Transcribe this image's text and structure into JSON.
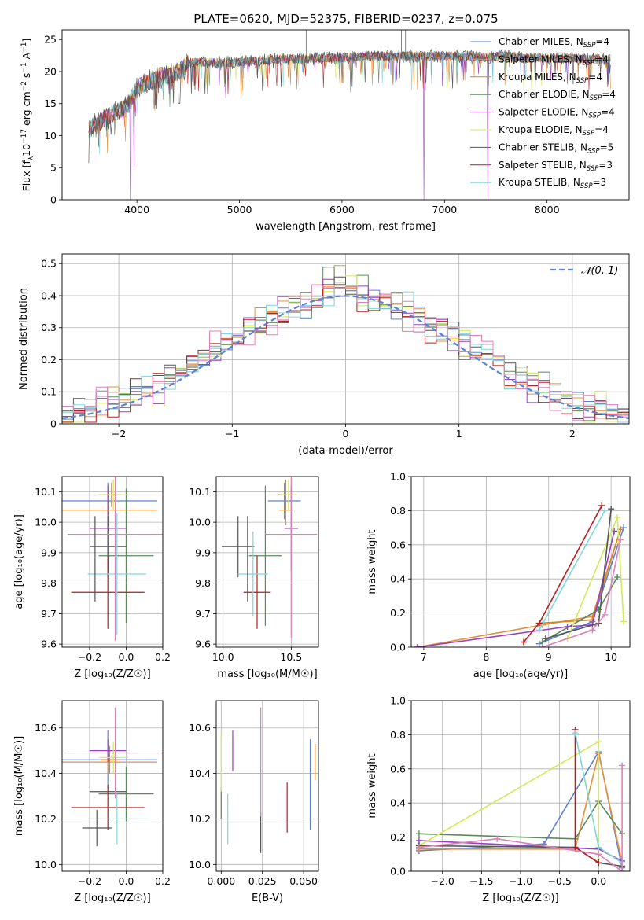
{
  "title": "PLATE=0620, MJD=52375, FIBERID=0237, z=0.075",
  "colors": {
    "Chabrier MILES": "#5b82d6",
    "Salpeter MILES": "#e7903a",
    "Kroupa MILES": "#d9822b",
    "Chabrier ELODIE": "#5b8a5b",
    "Salpeter ELODIE": "#9b3fbf",
    "Kroupa ELODIE": "#d4e85a",
    "Chabrier STELIB": "#555555",
    "Salpeter STELIB": "#b81c1c",
    "Kroupa STELIB": "#7ed6dc",
    "extra": "#e080b8"
  },
  "chart_data": [
    {
      "id": "spectrum",
      "type": "line",
      "xlabel": "wavelength [Angstrom, rest frame]",
      "ylabel": "Flux [f$_\\lambda$10$^{-17}$ erg cm$^{-2}$ s$^{-1}$ A$^{-1}$]",
      "ylabel_parts": [
        "Flux [f",
        "λ",
        "10",
        "−17",
        " erg cm",
        "−2",
        " s",
        "−1",
        " A",
        "−1",
        "]"
      ],
      "xlim": [
        3270,
        8800
      ],
      "ylim": [
        0,
        26.5
      ],
      "xticks": [
        4000,
        5000,
        6000,
        7000,
        8000
      ],
      "yticks": [
        0,
        5,
        10,
        15,
        20,
        25
      ],
      "legend_position": "top-right",
      "legend": [
        {
          "name": "Chabrier MILES",
          "nssp": "4",
          "color": "#5b82d6"
        },
        {
          "name": "Salpeter MILES",
          "nssp": "4",
          "color": "#e7903a"
        },
        {
          "name": "Kroupa MILES",
          "nssp": "4",
          "color": "#d9822b"
        },
        {
          "name": "Chabrier ELODIE",
          "nssp": "4",
          "color": "#5b8a5b"
        },
        {
          "name": "Salpeter ELODIE",
          "nssp": "4",
          "color": "#9b3fbf"
        },
        {
          "name": "Kroupa ELODIE",
          "nssp": "4",
          "color": "#d4e85a"
        },
        {
          "name": "Chabrier STELIB",
          "nssp": "5",
          "color": "#555555"
        },
        {
          "name": "Salpeter STELIB",
          "nssp": "3",
          "color": "#b81c1c"
        },
        {
          "name": "Kroupa STELIB",
          "nssp": "3",
          "color": "#7ed6dc"
        }
      ],
      "continuum": [
        [
          3530,
          11
        ],
        [
          3600,
          12
        ],
        [
          3700,
          13
        ],
        [
          3800,
          14
        ],
        [
          3900,
          14.5
        ],
        [
          4000,
          17.5
        ],
        [
          4100,
          18.5
        ],
        [
          4200,
          19.5
        ],
        [
          4300,
          19.5
        ],
        [
          4400,
          20
        ],
        [
          4500,
          21.5
        ],
        [
          4600,
          21.5
        ],
        [
          4700,
          21.5
        ],
        [
          4800,
          21.5
        ],
        [
          5000,
          21.5
        ],
        [
          5200,
          21.8
        ],
        [
          5400,
          22
        ],
        [
          5600,
          22
        ],
        [
          5800,
          22.2
        ],
        [
          6000,
          22.2
        ],
        [
          6200,
          22.5
        ],
        [
          6400,
          22.5
        ],
        [
          6600,
          22.5
        ],
        [
          6800,
          22.5
        ],
        [
          7000,
          22.5
        ],
        [
          7200,
          22.5
        ],
        [
          7400,
          22.3
        ],
        [
          7600,
          22.5
        ],
        [
          7800,
          22.2
        ],
        [
          8000,
          22.2
        ],
        [
          8200,
          22.2
        ],
        [
          8400,
          22
        ],
        [
          8600,
          22
        ]
      ],
      "dips": [
        [
          3934,
          0
        ],
        [
          3969,
          5
        ],
        [
          4861,
          18
        ],
        [
          5175,
          19
        ],
        [
          6563,
          19
        ],
        [
          6800,
          0
        ],
        [
          7420,
          0
        ]
      ]
    },
    {
      "id": "residuals",
      "type": "line",
      "xlabel": "(data-model)/error",
      "ylabel": "Normed distribution",
      "xlim": [
        -2.5,
        2.5
      ],
      "ylim": [
        0,
        0.53
      ],
      "xticks": [
        -2,
        -1,
        0,
        1,
        2
      ],
      "yticks": [
        0.0,
        0.1,
        0.2,
        0.3,
        0.4,
        0.5
      ],
      "grid": true,
      "legend_position": "top-right",
      "legend": [
        {
          "name": "𝒩(0, 1)",
          "color": "#5b82d6",
          "style": "dashed"
        }
      ],
      "bin_width": 0.1
    },
    {
      "id": "age-vs-Z",
      "type": "scatter",
      "xlabel": "Z [log₁₀(Z/Z☉)]",
      "ylabel": "age  [log₁₀(age/yr)]",
      "xlim": [
        -0.35,
        0.2
      ],
      "ylim": [
        9.59,
        10.15
      ],
      "xticks": [
        "-0.2",
        "0.0",
        "0.2"
      ],
      "yticks": [
        "9.6",
        "9.7",
        "9.8",
        "9.9",
        "10.0",
        "10.1"
      ],
      "grid": true,
      "points": [
        {
          "color": "#5b82d6",
          "x": -0.1,
          "xerr": 0.27,
          "y": 10.07,
          "yerr": 0.06
        },
        {
          "color": "#e7903a",
          "x": -0.1,
          "xerr": 0.27,
          "y": 10.04,
          "yerr": 0.07
        },
        {
          "color": "#d9822b",
          "x": -0.08,
          "xerr": 0.05,
          "y": 10.09,
          "yerr": 0.04
        },
        {
          "color": "#5b8a5b",
          "x": 0.0,
          "xerr": 0.15,
          "y": 9.89,
          "yerr": 0.22
        },
        {
          "color": "#9b3fbf",
          "x": -0.1,
          "xerr": 0.1,
          "y": 9.98,
          "yerr": 0.14
        },
        {
          "color": "#d4e85a",
          "x": -0.07,
          "xerr": 0.08,
          "y": 10.09,
          "yerr": 0.05
        },
        {
          "color": "#555555",
          "x": -0.1,
          "xerr": 0.1,
          "y": 9.92,
          "yerr": 0.1
        },
        {
          "color": "#b81c1c",
          "x": -0.1,
          "xerr": 0.2,
          "y": 9.77,
          "yerr": 0.12
        },
        {
          "color": "#7ed6dc",
          "x": -0.05,
          "xerr": 0.16,
          "y": 9.83,
          "yerr": 0.2
        },
        {
          "color": "#e080b8",
          "x": -0.06,
          "xerr": 0.26,
          "y": 9.96,
          "yerr": 0.35
        },
        {
          "color": "#555555",
          "x": -0.17,
          "xerr": 0.0,
          "y": 9.88,
          "yerr": 0.14
        }
      ]
    },
    {
      "id": "age-vs-mass",
      "type": "scatter",
      "xlabel": "mass [log₁₀(M/M☉)]",
      "xlim": [
        9.95,
        10.7
      ],
      "ylim": [
        9.59,
        10.15
      ],
      "xticks": [
        "10.0",
        "10.5"
      ],
      "yticks": [
        "9.6",
        "9.7",
        "9.8",
        "9.9",
        "10.0",
        "10.1"
      ],
      "grid": true,
      "points": [
        {
          "color": "#5b82d6",
          "x": 10.45,
          "xerr": 0.12,
          "y": 10.07,
          "yerr": 0.06
        },
        {
          "color": "#e7903a",
          "x": 10.46,
          "xerr": 0.05,
          "y": 10.04,
          "yerr": 0.05
        },
        {
          "color": "#d9822b",
          "x": 10.46,
          "xerr": 0.06,
          "y": 10.09,
          "yerr": 0.05
        },
        {
          "color": "#5b8a5b",
          "x": 10.31,
          "xerr": 0.12,
          "y": 9.89,
          "yerr": 0.23
        },
        {
          "color": "#9b3fbf",
          "x": 10.5,
          "xerr": 0.05,
          "y": 9.98,
          "yerr": 0.14
        },
        {
          "color": "#d4e85a",
          "x": 10.48,
          "xerr": 0.06,
          "y": 10.09,
          "yerr": 0.05
        },
        {
          "color": "#555555",
          "x": 10.11,
          "xerr": 0.12,
          "y": 9.92,
          "yerr": 0.1
        },
        {
          "color": "#b81c1c",
          "x": 10.25,
          "xerr": 0.1,
          "y": 9.77,
          "yerr": 0.12
        },
        {
          "color": "#7ed6dc",
          "x": 10.22,
          "xerr": 0.11,
          "y": 9.83,
          "yerr": 0.14
        },
        {
          "color": "#e080b8",
          "x": 10.5,
          "xerr": 0.19,
          "y": 9.96,
          "yerr": 0.34
        },
        {
          "color": "#555555",
          "x": 10.18,
          "xerr": 0.0,
          "y": 9.88,
          "yerr": 0.14
        }
      ]
    },
    {
      "id": "massweight-vs-age",
      "type": "line",
      "xlabel": "age  [log₁₀(age/yr)]",
      "ylabel": "mass weight",
      "xlim": [
        6.8,
        10.3
      ],
      "ylim": [
        0,
        1.0
      ],
      "xticks": [
        "7",
        "8",
        "9",
        "10"
      ],
      "yticks": [
        "0.0",
        "0.2",
        "0.4",
        "0.6",
        "0.8",
        "1.0"
      ],
      "grid": true,
      "series": [
        {
          "color": "#5b82d6",
          "x": [
            8.85,
            9.7,
            10.2
          ],
          "y": [
            0.02,
            0.15,
            0.7
          ]
        },
        {
          "color": "#e7903a",
          "x": [
            6.9,
            8.9,
            9.7,
            10.15
          ],
          "y": [
            0.0,
            0.13,
            0.18,
            0.69
          ]
        },
        {
          "color": "#d9822b",
          "x": [
            8.85,
            9.7,
            10.15
          ],
          "y": [
            0.14,
            0.16,
            0.69
          ]
        },
        {
          "color": "#5b8a5b",
          "x": [
            8.9,
            9.8,
            10.1
          ],
          "y": [
            0.03,
            0.22,
            0.41
          ]
        },
        {
          "color": "#9b3fbf",
          "x": [
            6.9,
            9.3,
            9.7,
            10.05
          ],
          "y": [
            0.0,
            0.12,
            0.13,
            0.68
          ]
        },
        {
          "color": "#d4e85a",
          "x": [
            9.3,
            10.1,
            10.2
          ],
          "y": [
            0.05,
            0.76,
            0.15
          ]
        },
        {
          "color": "#555555",
          "x": [
            8.95,
            9.8,
            10.0
          ],
          "y": [
            0.05,
            0.14,
            0.81
          ]
        },
        {
          "color": "#b81c1c",
          "x": [
            8.6,
            8.85,
            9.85
          ],
          "y": [
            0.03,
            0.14,
            0.83
          ]
        },
        {
          "color": "#7ed6dc",
          "x": [
            8.85,
            9.9
          ],
          "y": [
            0.1,
            0.8
          ]
        },
        {
          "color": "#e080b8",
          "x": [
            8.9,
            9.7,
            9.9,
            10.15
          ],
          "y": [
            0.0,
            0.1,
            0.19,
            0.63
          ]
        }
      ]
    },
    {
      "id": "mass-vs-Z",
      "type": "scatter",
      "xlabel": "Z [log₁₀(Z/Z☉)]",
      "ylabel": "mass [log₁₀(M/M☉)]",
      "xlim": [
        -0.35,
        0.2
      ],
      "ylim": [
        9.97,
        10.72
      ],
      "xticks": [
        "-0.2",
        "0.0",
        "0.2"
      ],
      "yticks": [
        "10.0",
        "10.2",
        "10.4",
        "10.6"
      ],
      "grid": true,
      "points": [
        {
          "color": "#5b82d6",
          "x": -0.1,
          "xerr": 0.27,
          "y": 10.46,
          "yerr": 0.13
        },
        {
          "color": "#e7903a",
          "x": -0.1,
          "xerr": 0.27,
          "y": 10.45,
          "yerr": 0.05
        },
        {
          "color": "#d9822b",
          "x": -0.09,
          "xerr": 0.05,
          "y": 10.46,
          "yerr": 0.06
        },
        {
          "color": "#5b8a5b",
          "x": 0.0,
          "xerr": 0.15,
          "y": 10.31,
          "yerr": 0.12
        },
        {
          "color": "#9b3fbf",
          "x": -0.1,
          "xerr": 0.1,
          "y": 10.5,
          "yerr": 0.05
        },
        {
          "color": "#d4e85a",
          "x": -0.07,
          "xerr": 0.08,
          "y": 10.47,
          "yerr": 0.07
        },
        {
          "color": "#555555",
          "x": -0.1,
          "xerr": 0.1,
          "y": 10.32,
          "yerr": 0.0
        },
        {
          "color": "#b81c1c",
          "x": -0.1,
          "xerr": 0.2,
          "y": 10.25,
          "yerr": 0.1
        },
        {
          "color": "#7ed6dc",
          "x": -0.05,
          "xerr": 0.16,
          "y": 10.2,
          "yerr": 0.11
        },
        {
          "color": "#e080b8",
          "x": -0.06,
          "xerr": 0.26,
          "y": 10.49,
          "yerr": 0.2
        },
        {
          "color": "#555555",
          "x": -0.16,
          "xerr": 0.08,
          "y": 10.16,
          "yerr": 0.08
        }
      ]
    },
    {
      "id": "mass-vs-EBV",
      "type": "scatter",
      "xlabel": "E(B-V)",
      "xlim": [
        -0.003,
        0.059
      ],
      "ylim": [
        9.97,
        10.72
      ],
      "xticks": [
        "0.000",
        "0.025",
        "0.050"
      ],
      "yticks": [
        "10.0",
        "10.2",
        "10.4",
        "10.6"
      ],
      "grid": true,
      "points": [
        {
          "color": "#5b82d6",
          "x": 0.054,
          "xerr": 0,
          "y": 10.35,
          "yerr": 0.2
        },
        {
          "color": "#e7903a",
          "x": 0.057,
          "xerr": 0,
          "y": 10.45,
          "yerr": 0.08
        },
        {
          "color": "#5b8a5b",
          "x": 0.0,
          "xerr": 0,
          "y": 10.27,
          "yerr": 0.07
        },
        {
          "color": "#9b3fbf",
          "x": 0.007,
          "xerr": 0,
          "y": 10.5,
          "yerr": 0.09
        },
        {
          "color": "#d4e85a",
          "x": 0.0,
          "xerr": 0,
          "y": 10.45,
          "yerr": 0.13
        },
        {
          "color": "#555555",
          "x": 0.024,
          "xerr": 0,
          "y": 10.14,
          "yerr": 0.09
        },
        {
          "color": "#b81c1c",
          "x": 0.04,
          "xerr": 0,
          "y": 10.25,
          "yerr": 0.11
        },
        {
          "color": "#7ed6dc",
          "x": 0.004,
          "xerr": 0,
          "y": 10.2,
          "yerr": 0.11
        },
        {
          "color": "#e080b8",
          "x": 0.024,
          "xerr": 0,
          "y": 10.45,
          "yerr": 0.24
        }
      ]
    },
    {
      "id": "massweight-vs-Z",
      "type": "line",
      "xlabel": "Z [log₁₀(Z/Z☉)]",
      "ylabel": "mass weight",
      "xlim": [
        -2.4,
        0.4
      ],
      "ylim": [
        0,
        1.0
      ],
      "xticks": [
        "-2.0",
        "-1.5",
        "-1.0",
        "-0.5",
        "0.0",
        "0.5"
      ],
      "yticks": [
        "0.0",
        "0.2",
        "0.4",
        "0.6",
        "0.8",
        "1.0"
      ],
      "grid": true,
      "series": [
        {
          "color": "#5b82d6",
          "x": [
            -2.3,
            -0.7,
            0.0,
            0.3
          ],
          "y": [
            0.12,
            0.16,
            0.7,
            0.02
          ]
        },
        {
          "color": "#e7903a",
          "x": [
            -2.3,
            -0.3,
            0.0,
            0.3
          ],
          "y": [
            0.13,
            0.13,
            0.69,
            0.05
          ]
        },
        {
          "color": "#5b8a5b",
          "x": [
            -2.3,
            -0.3,
            0.0,
            0.3
          ],
          "y": [
            0.22,
            0.19,
            0.41,
            0.22
          ]
        },
        {
          "color": "#9b3fbf",
          "x": [
            -2.3,
            0.0,
            0.3
          ],
          "y": [
            0.18,
            0.13,
            0.06
          ]
        },
        {
          "color": "#d4e85a",
          "x": [
            -2.3,
            0.0,
            0.0
          ],
          "y": [
            0.15,
            0.76,
            0.05
          ]
        },
        {
          "color": "#555555",
          "x": [
            -2.3,
            -0.3,
            0.0,
            0.3
          ],
          "y": [
            0.15,
            0.14,
            0.05,
            0.03
          ]
        },
        {
          "color": "#b81c1c",
          "x": [
            -0.3,
            -0.3,
            0.0
          ],
          "y": [
            0.83,
            0.14,
            0.05
          ]
        },
        {
          "color": "#7ed6dc",
          "x": [
            -0.3,
            0.0,
            0.3
          ],
          "y": [
            0.81,
            0.14,
            0.05
          ]
        },
        {
          "color": "#e080b8",
          "x": [
            -2.3,
            -1.3,
            0.0,
            0.3,
            0.3
          ],
          "y": [
            0.14,
            0.19,
            0.1,
            0.0,
            0.62
          ]
        }
      ]
    }
  ]
}
